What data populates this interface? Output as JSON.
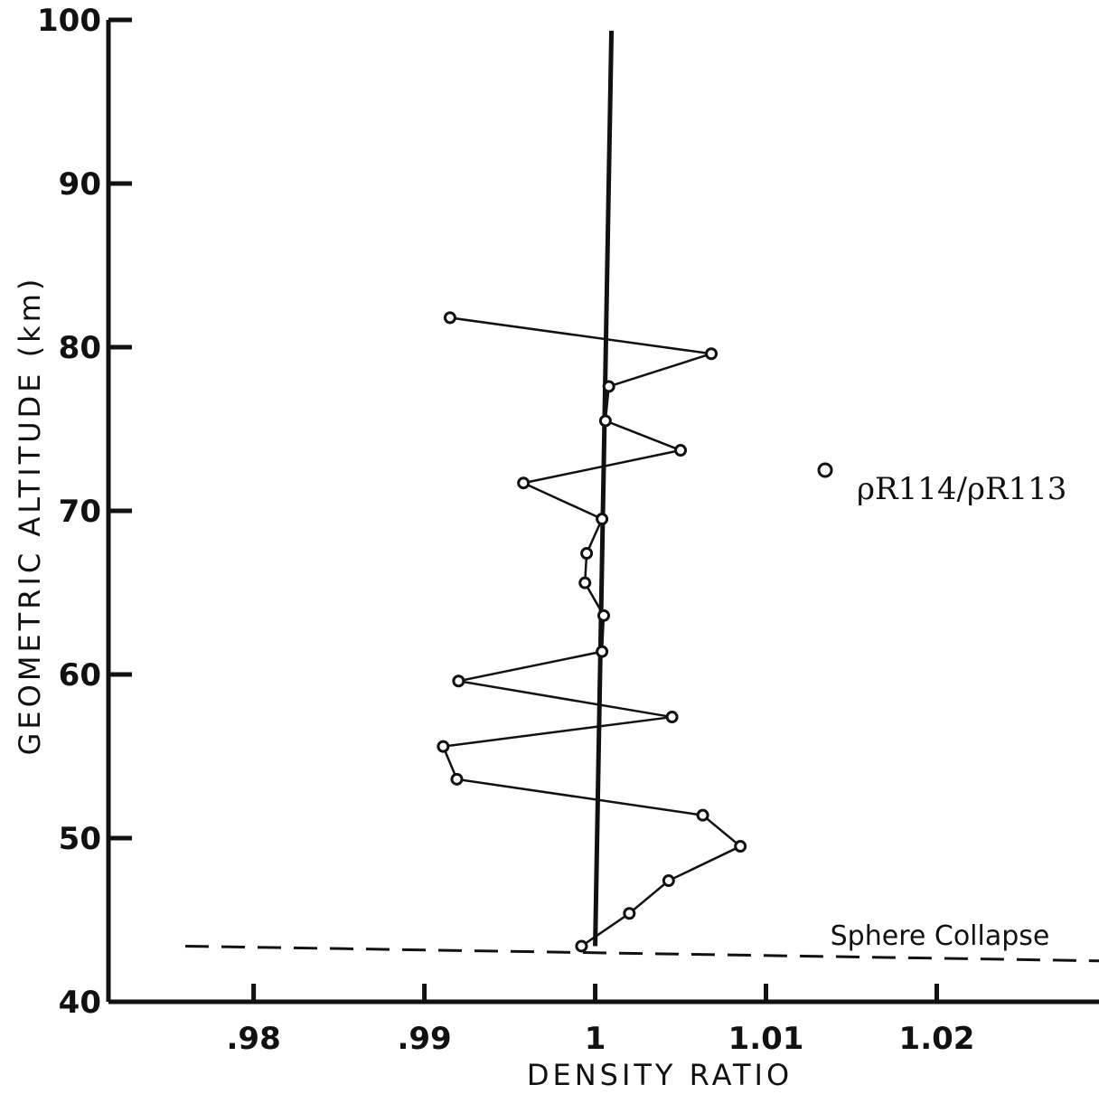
{
  "chart_data": {
    "type": "line",
    "title": "",
    "xlabel": "DENSITY RATIO",
    "ylabel": "GEOMETRIC  ALTITUDE (km)",
    "xlim": [
      0.9715,
      1.0295
    ],
    "ylim": [
      40,
      100
    ],
    "x_ticks": [
      0.98,
      0.99,
      1,
      1.01,
      1.02
    ],
    "x_tick_labels": [
      ".98",
      ".99",
      "1",
      "1.01",
      "1.02"
    ],
    "y_ticks": [
      40,
      50,
      60,
      70,
      80,
      90,
      100
    ],
    "y_tick_labels": [
      "40",
      "50",
      "60",
      "70",
      "80",
      "90",
      "100"
    ],
    "reference_line": {
      "x": 1.0
    },
    "collapse_line": {
      "label": "Sphere Collapse",
      "x_start": 0.976,
      "x_end": 1.0295,
      "y_start": 43.4,
      "y_end": 42.5
    },
    "legend": {
      "position": "right",
      "entries": [
        {
          "marker": "open-circle",
          "label": "ρR114/ρR113"
        }
      ]
    },
    "series": [
      {
        "name": "ρR114/ρR113",
        "marker": "open-circle",
        "x": [
          0.9992,
          1.002,
          1.0043,
          1.0085,
          1.0063,
          0.9919,
          0.9911,
          1.0045,
          0.992,
          1.0004,
          1.0005,
          0.9994,
          0.9995,
          1.0004,
          0.9958,
          1.005,
          1.0006,
          1.0008,
          1.0068,
          0.9915
        ],
        "y": [
          43.4,
          45.4,
          47.4,
          49.5,
          51.4,
          53.6,
          55.6,
          57.4,
          59.6,
          61.4,
          63.6,
          65.6,
          67.4,
          69.5,
          71.7,
          73.7,
          75.5,
          77.6,
          79.6,
          81.8
        ]
      }
    ]
  }
}
